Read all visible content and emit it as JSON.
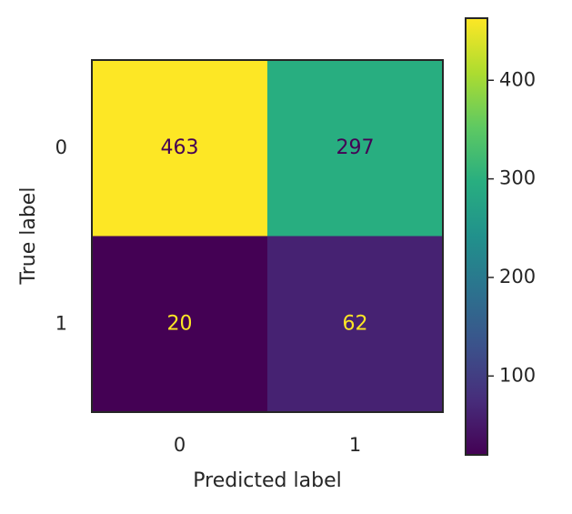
{
  "chart_data": {
    "type": "heatmap",
    "xlabel": "Predicted label",
    "ylabel": "True label",
    "xcategories": [
      "0",
      "1"
    ],
    "ycategories": [
      "0",
      "1"
    ],
    "values": [
      [
        463,
        297
      ],
      [
        20,
        62
      ]
    ],
    "colormap": "viridis",
    "clim": [
      20,
      463
    ],
    "cticks": [
      100,
      200,
      300,
      400
    ]
  }
}
